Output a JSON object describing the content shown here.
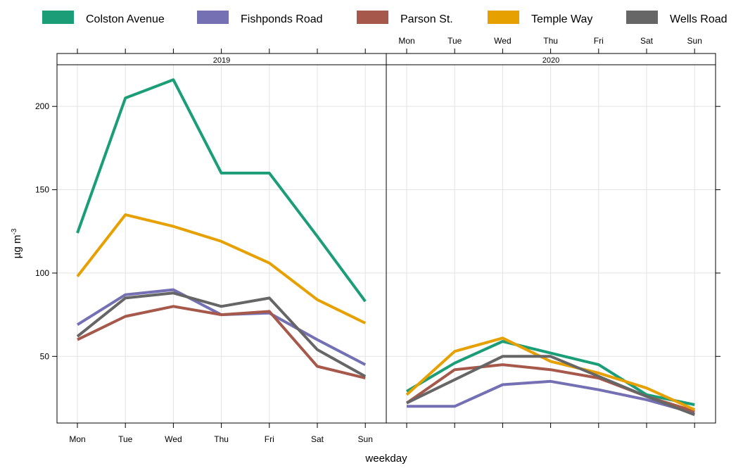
{
  "chart_data": {
    "type": "line",
    "xlabel": "weekday",
    "ylabel": "µg m",
    "ylabel_superscript": "-3",
    "categories": [
      "Mon",
      "Tue",
      "Wed",
      "Thu",
      "Fri",
      "Sat",
      "Sun"
    ],
    "ylim": [
      10,
      225
    ],
    "yticks": [
      50,
      100,
      150,
      200
    ],
    "grid": true,
    "legend_position": "top",
    "panels": [
      {
        "label": "2019",
        "series": [
          {
            "name": "Colston Avenue",
            "color": "#1b9e77",
            "values": [
              124,
              205,
              216,
              160,
              160,
              122,
              83
            ]
          },
          {
            "name": "Fishponds Road",
            "color": "#7570b3",
            "values": [
              69,
              87,
              90,
              75,
              76,
              60,
              45
            ]
          },
          {
            "name": "Parson St.",
            "color": "#a6594a",
            "values": [
              60,
              74,
              80,
              75,
              77,
              44,
              37
            ]
          },
          {
            "name": "Temple Way",
            "color": "#e6a000",
            "values": [
              98,
              135,
              128,
              119,
              106,
              84,
              70
            ]
          },
          {
            "name": "Wells Road",
            "color": "#666666",
            "values": [
              62,
              85,
              88,
              80,
              85,
              54,
              38
            ]
          }
        ]
      },
      {
        "label": "2020",
        "series": [
          {
            "name": "Colston Avenue",
            "color": "#1b9e77",
            "values": [
              29,
              46,
              59,
              52,
              45,
              27,
              21
            ]
          },
          {
            "name": "Fishponds Road",
            "color": "#7570b3",
            "values": [
              20,
              20,
              33,
              35,
              30,
              24,
              16
            ]
          },
          {
            "name": "Parson St.",
            "color": "#a6594a",
            "values": [
              22,
              42,
              45,
              42,
              37,
              26,
              17
            ]
          },
          {
            "name": "Temple Way",
            "color": "#e6a000",
            "values": [
              27,
              53,
              61,
              47,
              40,
              31,
              18
            ]
          },
          {
            "name": "Wells Road",
            "color": "#666666",
            "values": [
              22,
              36,
              50,
              50,
              38,
              26,
              15
            ]
          }
        ]
      }
    ],
    "legend": [
      {
        "name": "Colston Avenue",
        "color": "#1b9e77"
      },
      {
        "name": "Fishponds Road",
        "color": "#7570b3"
      },
      {
        "name": "Parson St.",
        "color": "#a6594a"
      },
      {
        "name": "Temple Way",
        "color": "#e6a000"
      },
      {
        "name": "Wells Road",
        "color": "#666666"
      }
    ]
  }
}
